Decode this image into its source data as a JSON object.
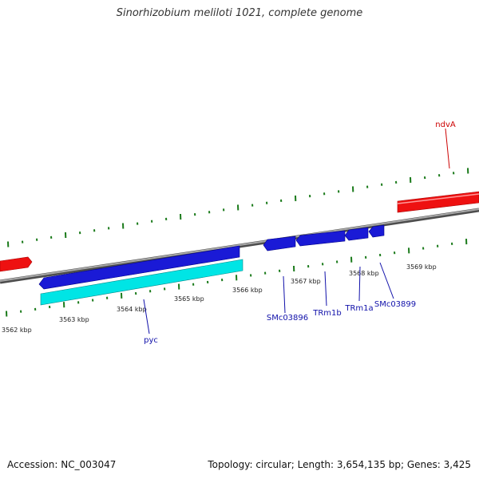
{
  "title": "Sinorhizobium meliloti 1021, complete genome",
  "footer": {
    "accession": "Accession: NC_003047",
    "summary": "Topology: circular; Length: 3,654,135 bp; Genes: 3,425"
  },
  "colors": {
    "forward_gene": "#ee1111",
    "reverse_gene": "#1a1ad6",
    "cds": "#00e5e5",
    "backbone": "#808080",
    "ticks": "#1a7a1a",
    "ndvA_label": "#cc0000",
    "reverse_label": "#1111aa"
  },
  "tick_labels": [
    {
      "text": "3562 kbp"
    },
    {
      "text": "3563 kbp"
    },
    {
      "text": "3564 kbp"
    },
    {
      "text": "3565 kbp"
    },
    {
      "text": "3566 kbp"
    },
    {
      "text": "3567 kbp"
    },
    {
      "text": "3568 kbp"
    },
    {
      "text": "3569 kbp"
    }
  ],
  "gene_labels": [
    {
      "text": "ndvA",
      "strand": "forward"
    },
    {
      "text": "pyc",
      "strand": "reverse"
    },
    {
      "text": "SMc03896",
      "strand": "reverse"
    },
    {
      "text": "TRm1b",
      "strand": "reverse"
    },
    {
      "text": "TRm1a",
      "strand": "reverse"
    },
    {
      "text": "SMc03899",
      "strand": "reverse"
    }
  ]
}
